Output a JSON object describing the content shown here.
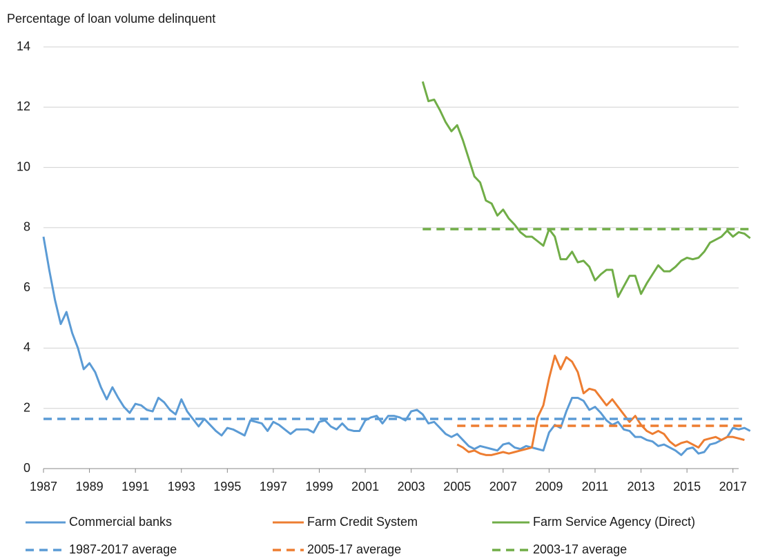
{
  "chart_data": {
    "type": "line",
    "y_label": "Percentage of loan volume delinquent",
    "xlim": [
      1987,
      2018
    ],
    "xticks": [
      1987,
      1989,
      1991,
      1993,
      1995,
      1997,
      1999,
      2001,
      2003,
      2005,
      2007,
      2009,
      2011,
      2013,
      2015,
      2017
    ],
    "ylim": [
      0,
      14
    ],
    "yticks": [
      0,
      2,
      4,
      6,
      8,
      10,
      12,
      14
    ],
    "grid": true,
    "x": [
      1987,
      1987.25,
      1987.5,
      1987.75,
      1988,
      1988.25,
      1988.5,
      1988.75,
      1989,
      1989.25,
      1989.5,
      1989.75,
      1990,
      1990.25,
      1990.5,
      1990.75,
      1991,
      1991.25,
      1991.5,
      1991.75,
      1992,
      1992.25,
      1992.5,
      1992.75,
      1993,
      1993.25,
      1993.5,
      1993.75,
      1994,
      1994.25,
      1994.5,
      1994.75,
      1995,
      1995.25,
      1995.5,
      1995.75,
      1996,
      1996.25,
      1996.5,
      1996.75,
      1997,
      1997.25,
      1997.5,
      1997.75,
      1998,
      1998.25,
      1998.5,
      1998.75,
      1999,
      1999.25,
      1999.5,
      1999.75,
      2000,
      2000.25,
      2000.5,
      2000.75,
      2001,
      2001.25,
      2001.5,
      2001.75,
      2002,
      2002.25,
      2002.5,
      2002.75,
      2003,
      2003.25,
      2003.5,
      2003.75,
      2004,
      2004.25,
      2004.5,
      2004.75,
      2005,
      2005.25,
      2005.5,
      2005.75,
      2006,
      2006.25,
      2006.5,
      2006.75,
      2007,
      2007.25,
      2007.5,
      2007.75,
      2008,
      2008.25,
      2008.5,
      2008.75,
      2009,
      2009.25,
      2009.5,
      2009.75,
      2010,
      2010.25,
      2010.5,
      2010.75,
      2011,
      2011.25,
      2011.5,
      2011.75,
      2012,
      2012.25,
      2012.5,
      2012.75,
      2013,
      2013.25,
      2013.5,
      2013.75,
      2014,
      2014.25,
      2014.5,
      2014.75,
      2015,
      2015.25,
      2015.5,
      2015.75,
      2016,
      2016.25,
      2016.5,
      2016.75,
      2017,
      2017.25,
      2017.5,
      2017.75
    ],
    "series": [
      {
        "name": "Commercial banks",
        "color": "#5b9bd5",
        "values": [
          7.7,
          6.6,
          5.6,
          4.8,
          5.2,
          4.5,
          4.0,
          3.3,
          3.5,
          3.2,
          2.7,
          2.3,
          2.7,
          2.35,
          2.05,
          1.85,
          2.15,
          2.1,
          1.95,
          1.9,
          2.35,
          2.2,
          1.95,
          1.8,
          2.3,
          1.9,
          1.65,
          1.4,
          1.65,
          1.45,
          1.25,
          1.1,
          1.35,
          1.3,
          1.2,
          1.1,
          1.6,
          1.55,
          1.5,
          1.25,
          1.55,
          1.45,
          1.3,
          1.15,
          1.3,
          1.3,
          1.3,
          1.2,
          1.55,
          1.6,
          1.4,
          1.3,
          1.5,
          1.3,
          1.25,
          1.25,
          1.6,
          1.7,
          1.75,
          1.5,
          1.75,
          1.75,
          1.7,
          1.6,
          1.9,
          1.95,
          1.8,
          1.5,
          1.55,
          1.35,
          1.15,
          1.05,
          1.15,
          0.95,
          0.75,
          0.65,
          0.75,
          0.7,
          0.65,
          0.6,
          0.8,
          0.85,
          0.7,
          0.65,
          0.75,
          0.7,
          0.65,
          0.6,
          1.2,
          1.45,
          1.35,
          1.9,
          2.35,
          2.35,
          2.25,
          1.95,
          2.05,
          1.85,
          1.6,
          1.45,
          1.55,
          1.3,
          1.25,
          1.05,
          1.05,
          0.95,
          0.9,
          0.75,
          0.8,
          0.7,
          0.6,
          0.45,
          0.65,
          0.7,
          0.5,
          0.55,
          0.8,
          0.85,
          0.95,
          1.05,
          1.35,
          1.3,
          1.35,
          1.25
        ]
      },
      {
        "name": "Farm Credit System",
        "color": "#ed7d31",
        "values": [
          null,
          null,
          null,
          null,
          null,
          null,
          null,
          null,
          null,
          null,
          null,
          null,
          null,
          null,
          null,
          null,
          null,
          null,
          null,
          null,
          null,
          null,
          null,
          null,
          null,
          null,
          null,
          null,
          null,
          null,
          null,
          null,
          null,
          null,
          null,
          null,
          null,
          null,
          null,
          null,
          null,
          null,
          null,
          null,
          null,
          null,
          null,
          null,
          null,
          null,
          null,
          null,
          null,
          null,
          null,
          null,
          null,
          null,
          null,
          null,
          null,
          null,
          null,
          null,
          null,
          null,
          null,
          null,
          null,
          null,
          null,
          null,
          0.8,
          0.7,
          0.55,
          0.6,
          0.5,
          0.45,
          0.45,
          0.5,
          0.55,
          0.5,
          0.55,
          0.6,
          0.65,
          0.7,
          1.7,
          2.1,
          3.0,
          3.75,
          3.3,
          3.7,
          3.55,
          3.2,
          2.5,
          2.65,
          2.6,
          2.35,
          2.1,
          2.3,
          2.05,
          1.8,
          1.55,
          1.75,
          1.45,
          1.25,
          1.15,
          1.25,
          1.15,
          0.9,
          0.75,
          0.85,
          0.9,
          0.8,
          0.7,
          0.95,
          1.0,
          1.05,
          0.95,
          1.05,
          1.05,
          1.0,
          0.95,
          null
        ]
      },
      {
        "name": "Farm Service Agency (Direct)",
        "color": "#70ad47",
        "values": [
          null,
          null,
          null,
          null,
          null,
          null,
          null,
          null,
          null,
          null,
          null,
          null,
          null,
          null,
          null,
          null,
          null,
          null,
          null,
          null,
          null,
          null,
          null,
          null,
          null,
          null,
          null,
          null,
          null,
          null,
          null,
          null,
          null,
          null,
          null,
          null,
          null,
          null,
          null,
          null,
          null,
          null,
          null,
          null,
          null,
          null,
          null,
          null,
          null,
          null,
          null,
          null,
          null,
          null,
          null,
          null,
          null,
          null,
          null,
          null,
          null,
          null,
          null,
          null,
          null,
          null,
          12.85,
          12.2,
          12.25,
          11.9,
          11.5,
          11.2,
          11.4,
          10.9,
          10.3,
          9.7,
          9.5,
          8.9,
          8.8,
          8.4,
          8.6,
          8.3,
          8.1,
          7.85,
          7.7,
          7.7,
          7.55,
          7.4,
          7.95,
          7.7,
          6.95,
          6.95,
          7.2,
          6.85,
          6.9,
          6.7,
          6.25,
          6.45,
          6.6,
          6.6,
          5.7,
          6.05,
          6.4,
          6.4,
          5.8,
          6.15,
          6.45,
          6.75,
          6.55,
          6.55,
          6.7,
          6.9,
          7.0,
          6.95,
          7.0,
          7.2,
          7.5,
          7.6,
          7.7,
          7.9,
          7.7,
          7.85,
          7.8,
          7.65
        ]
      }
    ],
    "reference_lines": [
      {
        "name": "1987-2017 average",
        "color": "#5b9bd5",
        "value": 1.65,
        "x": [
          1987,
          2017.55
        ]
      },
      {
        "name": "2005-17 average",
        "color": "#ed7d31",
        "value": 1.42,
        "x": [
          2005,
          2017.55
        ]
      },
      {
        "name": "2003-17 average",
        "color": "#70ad47",
        "value": 7.95,
        "x": [
          2003.5,
          2017.75
        ]
      }
    ]
  }
}
